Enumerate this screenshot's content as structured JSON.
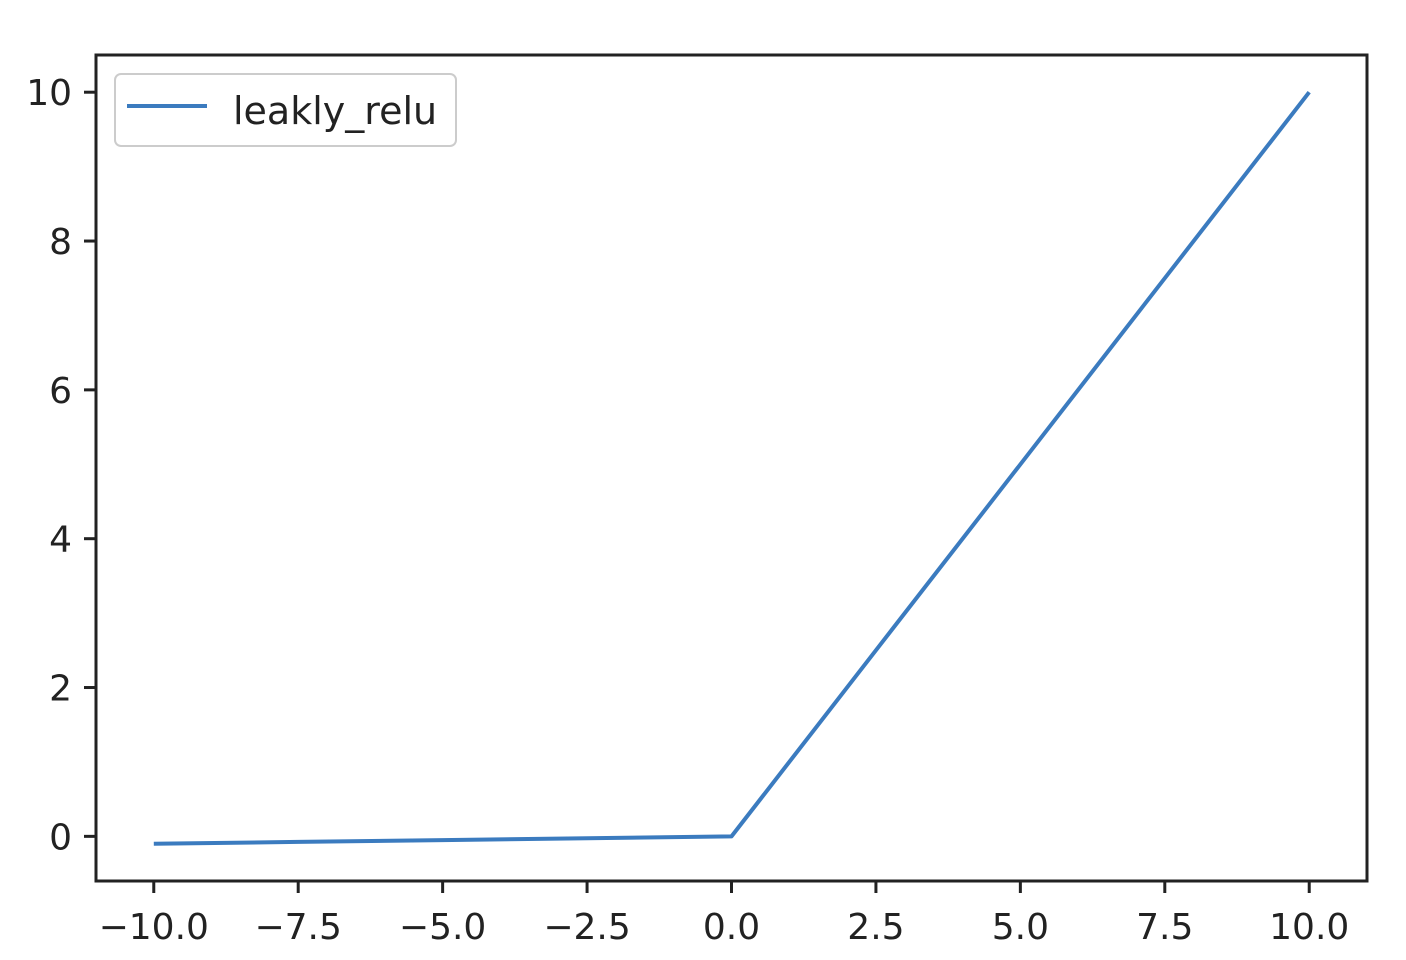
{
  "chart_data": {
    "type": "line",
    "title": "",
    "xlabel": "",
    "ylabel": "",
    "xlim": [
      -11,
      11
    ],
    "ylim": [
      -0.6,
      10.5
    ],
    "x_ticks": [
      -10.0,
      -7.5,
      -5.0,
      -2.5,
      0.0,
      2.5,
      5.0,
      7.5,
      10.0
    ],
    "x_tick_labels": [
      "−10.0",
      "−7.5",
      "−5.0",
      "−2.5",
      "0.0",
      "2.5",
      "5.0",
      "7.5",
      "10.0"
    ],
    "y_ticks": [
      0,
      2,
      4,
      6,
      8,
      10
    ],
    "y_tick_labels": [
      "0",
      "2",
      "4",
      "6",
      "8",
      "10"
    ],
    "grid": false,
    "legend_position": "upper-left",
    "series": [
      {
        "name": "leakly_relu",
        "color": "#3b7bbf",
        "x": [
          -10,
          -7.5,
          -5,
          -2.5,
          0,
          2.5,
          5,
          7.5,
          10
        ],
        "y": [
          -0.1,
          -0.075,
          -0.05,
          -0.025,
          0,
          2.5,
          5,
          7.5,
          10
        ]
      }
    ]
  }
}
